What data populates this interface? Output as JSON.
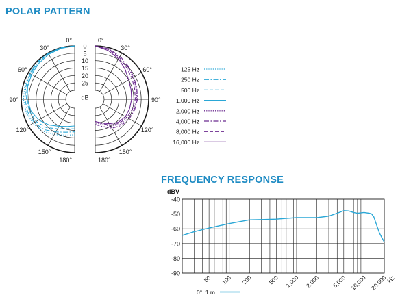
{
  "colors": {
    "title": "#1e8bc3",
    "cyan": "#2aa7d6",
    "purple": "#6b2a8f",
    "grid": "#1a1a1a"
  },
  "chart_data": [
    {
      "type": "polar",
      "title": "POLAR PATTERN",
      "unit": "dB",
      "ring_labels": [
        "0",
        "5",
        "10",
        "15",
        "20",
        "25"
      ],
      "angle_labels_left": [
        "0°",
        "30°",
        "60°",
        "90°",
        "120°",
        "150°",
        "180°"
      ],
      "angle_labels_right": [
        "0°",
        "30°",
        "60°",
        "90°",
        "120°",
        "150°",
        "180°"
      ],
      "legend_position": "right",
      "series": [
        {
          "name": "125 Hz",
          "side": "left",
          "color": "cyan",
          "dash": "dotted",
          "angles": [
            0,
            15,
            30,
            45,
            60,
            75,
            90,
            105,
            120,
            135,
            150,
            165,
            180
          ],
          "attenuation_db": [
            0,
            0,
            0,
            0.3,
            0.8,
            1.2,
            1.5,
            2.2,
            3.5,
            5.5,
            8.5,
            11,
            12
          ]
        },
        {
          "name": "250 Hz",
          "side": "left",
          "color": "cyan",
          "dash": "dashdot",
          "angles": [
            0,
            15,
            30,
            45,
            60,
            75,
            90,
            105,
            120,
            135,
            150,
            165,
            180
          ],
          "attenuation_db": [
            0,
            0,
            0.2,
            0.6,
            1.2,
            2,
            2.5,
            3.2,
            4.5,
            7,
            10.5,
            13,
            14
          ]
        },
        {
          "name": "500 Hz",
          "side": "left",
          "color": "cyan",
          "dash": "dashed",
          "angles": [
            0,
            15,
            30,
            45,
            60,
            75,
            90,
            105,
            120,
            135,
            150,
            165,
            180
          ],
          "attenuation_db": [
            0,
            0.2,
            0.5,
            1,
            1.8,
            2.8,
            3.5,
            4.5,
            6,
            9,
            13,
            15.5,
            16
          ]
        },
        {
          "name": "1,000 Hz",
          "side": "left",
          "color": "cyan",
          "dash": "solid",
          "angles": [
            0,
            15,
            30,
            45,
            60,
            75,
            90,
            105,
            120,
            135,
            150,
            165,
            180
          ],
          "attenuation_db": [
            0,
            0.5,
            1,
            1.8,
            2.5,
            3.2,
            4,
            5.5,
            8,
            11.5,
            15,
            17,
            18
          ]
        },
        {
          "name": "2,000 Hz",
          "side": "right",
          "color": "purple",
          "dash": "dotted",
          "angles": [
            0,
            15,
            30,
            45,
            60,
            75,
            90,
            105,
            120,
            135,
            150,
            165,
            180
          ],
          "attenuation_db": [
            0,
            1,
            3,
            5,
            6.5,
            7.5,
            8,
            9,
            10.5,
            12,
            15,
            18.5,
            20
          ]
        },
        {
          "name": "4,000 Hz",
          "side": "right",
          "color": "purple",
          "dash": "dashdot",
          "angles": [
            0,
            15,
            30,
            45,
            60,
            75,
            90,
            105,
            120,
            135,
            150,
            165,
            180
          ],
          "attenuation_db": [
            0,
            0.8,
            2.5,
            4.5,
            6,
            7,
            7.5,
            8.5,
            9.5,
            11,
            13.5,
            17,
            19
          ]
        },
        {
          "name": "8,000 Hz",
          "side": "right",
          "color": "purple",
          "dash": "dashed",
          "angles": [
            0,
            15,
            30,
            45,
            60,
            75,
            90,
            105,
            120,
            135,
            150,
            165,
            180
          ],
          "attenuation_db": [
            0,
            1.2,
            3.5,
            6,
            7.5,
            8.5,
            9,
            10,
            11.5,
            13,
            16,
            19,
            21
          ]
        },
        {
          "name": "16,000 Hz",
          "side": "right",
          "color": "purple",
          "dash": "solid",
          "angles": [
            0,
            15,
            30,
            45,
            60,
            75,
            90,
            105,
            120,
            135,
            150,
            165,
            180
          ],
          "attenuation_db": [
            0,
            2,
            4.5,
            7.5,
            10,
            11,
            11.5,
            12,
            12.5,
            14,
            17,
            19.5,
            21
          ]
        }
      ]
    },
    {
      "type": "line",
      "title": "FREQUENCY RESPONSE",
      "ylabel": "dBV",
      "xlabel": "Hz",
      "xscale": "log",
      "xlim": [
        20,
        20000
      ],
      "ylim": [
        -90,
        -40
      ],
      "x_ticks": [
        50,
        100,
        200,
        500,
        1000,
        2000,
        5000,
        10000,
        20000
      ],
      "x_tick_labels": [
        "50",
        "100",
        "200",
        "500",
        "1,000",
        "2,000",
        "5,000",
        "10,000",
        "20,000"
      ],
      "y_ticks": [
        -40,
        -50,
        -60,
        -70,
        -80,
        -90
      ],
      "grid": true,
      "legend_position": "bottom",
      "series": [
        {
          "name": "0°, 1 m",
          "color": "cyan",
          "x": [
            20,
            30,
            50,
            100,
            150,
            200,
            300,
            500,
            700,
            1000,
            2000,
            3000,
            4000,
            5000,
            6000,
            7000,
            8000,
            10000,
            12000,
            13000,
            14000,
            15000,
            17000,
            20000
          ],
          "y": [
            -64.5,
            -62,
            -59.5,
            -56.5,
            -55,
            -54,
            -53.8,
            -53.5,
            -53,
            -52.5,
            -52.5,
            -51.5,
            -49.5,
            -47.8,
            -48,
            -49,
            -49.5,
            -49,
            -49.5,
            -50,
            -52,
            -56,
            -63,
            -69
          ]
        }
      ]
    }
  ]
}
